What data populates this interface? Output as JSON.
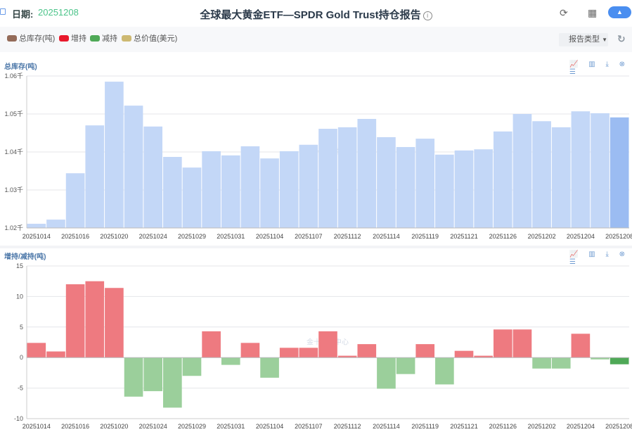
{
  "header": {
    "date_label": "日期:",
    "date_value": "20251208",
    "title": "全球最大黄金ETF—SPDR Gold Trust持仓报告",
    "info": "i",
    "chart_toggle": "▲"
  },
  "legend": [
    {
      "label": "总库存(吨)",
      "color": "#946b59"
    },
    {
      "label": "增持",
      "color": "#e8192c"
    },
    {
      "label": "减持",
      "color": "#4fa957"
    },
    {
      "label": "总价值(美元)",
      "color": "#cdb972"
    }
  ],
  "report_type": "报告类型",
  "toolbox": "📈 ▥ ⤓ ⊗ ☰",
  "watermark": "金十数据中心",
  "chart_data": [
    {
      "type": "bar",
      "title": "总库存(吨)",
      "ylabel": "吨",
      "ylim": [
        1020,
        1060
      ],
      "yticks": [
        1020,
        1030,
        1040,
        1050,
        1060
      ],
      "ytick_labels": [
        "1.02千",
        "1.03千",
        "1.04千",
        "1.05千",
        "1.06千"
      ],
      "categories": [
        "20251014",
        "20251015",
        "20251016",
        "20251017",
        "20251020",
        "20251021",
        "20251024",
        "20251027",
        "20251029",
        "20251030",
        "20251031",
        "20251103",
        "20251104",
        "20251106",
        "20251107",
        "20251110",
        "20251112",
        "20251113",
        "20251114",
        "20251117",
        "20251119",
        "20251120",
        "20251121",
        "20251124",
        "20251126",
        "20251201",
        "20251202",
        "20251203",
        "20251204",
        "20251205",
        "20251208"
      ],
      "xtick_labels": [
        "20251014",
        "20251016",
        "20251020",
        "20251024",
        "20251029",
        "20251031",
        "20251104",
        "20251107",
        "20251112",
        "20251114",
        "20251119",
        "20251121",
        "20251126",
        "20251202",
        "20251204",
        "20251208"
      ],
      "values": [
        1021.1,
        1022.2,
        1034.4,
        1047.0,
        1058.5,
        1052.2,
        1046.7,
        1038.7,
        1035.9,
        1040.2,
        1039.1,
        1041.5,
        1038.3,
        1040.2,
        1041.9,
        1046.1,
        1046.5,
        1048.7,
        1043.9,
        1041.3,
        1043.5,
        1039.3,
        1040.4,
        1040.7,
        1045.4,
        1050.0,
        1048.1,
        1046.5,
        1050.7,
        1050.2,
        1049.1
      ],
      "color": "#c3d7f7",
      "highlight_color": "#9bbcf2"
    },
    {
      "type": "bar",
      "title": "增持/减持(吨)",
      "ylim": [
        -10,
        15
      ],
      "yticks": [
        -10,
        -5,
        0,
        5,
        10,
        15
      ],
      "ytick_labels": [
        "-10",
        "-5",
        "0",
        "5",
        "10",
        "15"
      ],
      "values": [
        2.4,
        1.0,
        12.0,
        12.5,
        11.4,
        -6.4,
        -5.5,
        -8.2,
        -3.0,
        4.3,
        -1.2,
        2.4,
        -3.3,
        1.6,
        1.6,
        4.3,
        0.3,
        2.2,
        -5.1,
        -2.7,
        2.2,
        -4.4,
        1.1,
        0.3,
        4.6,
        4.6,
        -1.8,
        -1.8,
        3.9,
        -0.3,
        -1.1
      ],
      "pos_color": "#ee7a80",
      "neg_color": "#9bcf9b",
      "pos_highlight": "#e8333f",
      "neg_highlight": "#4fa957"
    }
  ]
}
